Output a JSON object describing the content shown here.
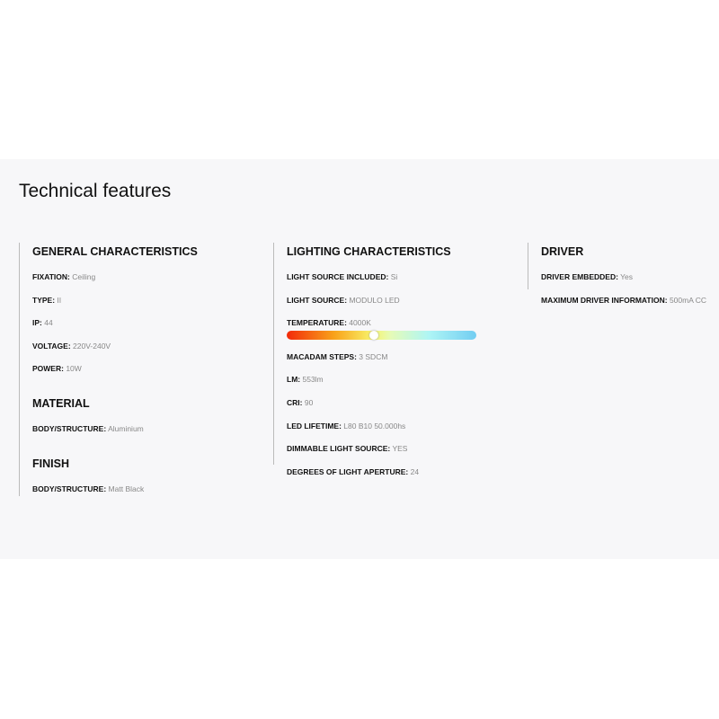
{
  "title": "Technical features",
  "general": {
    "heading": "GENERAL CHARACTERISTICS",
    "items": [
      {
        "label": "FIXATION:",
        "value": "Ceiling"
      },
      {
        "label": "TYPE:",
        "value": "II"
      },
      {
        "label": "IP:",
        "value": "44"
      },
      {
        "label": "VOLTAGE:",
        "value": "220V-240V"
      },
      {
        "label": "POWER:",
        "value": "10W"
      }
    ]
  },
  "material": {
    "heading": "MATERIAL",
    "items": [
      {
        "label": "BODY/STRUCTURE:",
        "value": "Aluminium"
      }
    ]
  },
  "finish": {
    "heading": "FINISH",
    "items": [
      {
        "label": "BODY/STRUCTURE:",
        "value": "Matt Black"
      }
    ]
  },
  "lighting": {
    "heading": "LIGHTING CHARACTERISTICS",
    "items": [
      {
        "label": "LIGHT SOURCE INCLUDED:",
        "value": "Si"
      },
      {
        "label": "LIGHT SOURCE:",
        "value": "MODULO LED"
      },
      {
        "label": "TEMPERATURE:",
        "value": "4000K"
      },
      {
        "label": "MACADAM STEPS:",
        "value": "3 SDCM"
      },
      {
        "label": "LM:",
        "value": "553lm"
      },
      {
        "label": "CRI:",
        "value": "90"
      },
      {
        "label": "LED LIFETIME:",
        "value": "L80 B10 50.000hs"
      },
      {
        "label": "DIMMABLE LIGHT SOURCE:",
        "value": "YES"
      },
      {
        "label": "DEGREES OF LIGHT APERTURE:",
        "value": "24"
      }
    ],
    "temperature_scale_position_percent": 46
  },
  "driver": {
    "heading": "DRIVER",
    "items": [
      {
        "label": "DRIVER EMBEDDED:",
        "value": "Yes"
      },
      {
        "label": "MAXIMUM DRIVER INFORMATION:",
        "value": "500mA CC"
      }
    ]
  }
}
